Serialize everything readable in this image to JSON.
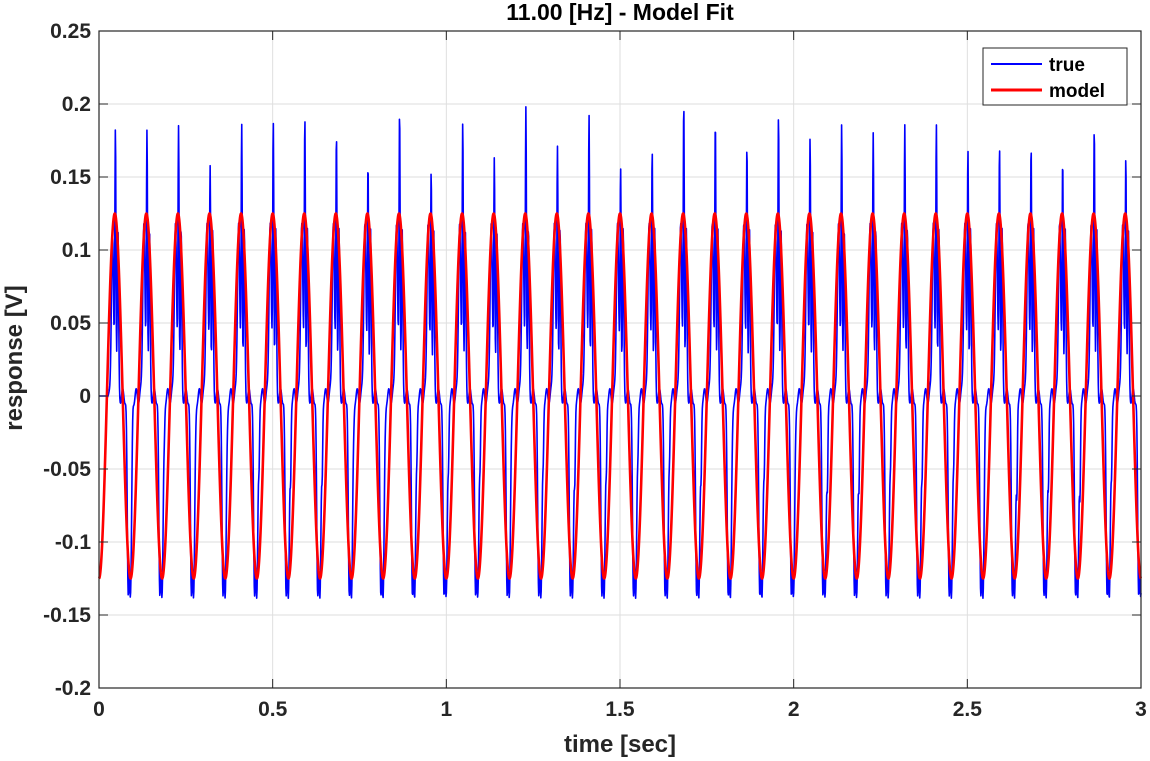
{
  "chart_data": {
    "type": "line",
    "title": "11.00 [Hz] - Model Fit",
    "xlabel": "time [sec]",
    "ylabel": "response [V]",
    "xlim": [
      0,
      3
    ],
    "ylim": [
      -0.2,
      0.25
    ],
    "xticks": [
      0,
      0.5,
      1,
      1.5,
      2,
      2.5,
      3
    ],
    "xtick_labels": [
      "0",
      "0.5",
      "1",
      "1.5",
      "2",
      "2.5",
      "3"
    ],
    "yticks": [
      -0.2,
      -0.15,
      -0.1,
      -0.05,
      0,
      0.05,
      0.1,
      0.15,
      0.2,
      0.25
    ],
    "ytick_labels": [
      "-0.2",
      "-0.15",
      "-0.1",
      "-0.05",
      "0",
      "0.05",
      "0.1",
      "0.15",
      "0.2",
      "0.25"
    ],
    "grid": true,
    "legend_position": "top-right",
    "frequency_hz": 11.0,
    "series": [
      {
        "name": "true",
        "color": "#0000ff",
        "description_values": {
          "period_sec": 0.0909,
          "peak_max_range": [
            0.15,
            0.204
          ],
          "secondary_peak": 0.12,
          "trough_min_range": [
            -0.187,
            -0.13
          ],
          "shoulder_value": 0.0,
          "x": [
            0,
            0.02,
            0.035,
            0.045,
            0.055,
            0.08,
            0.09,
            0.1,
            0.13,
            0.2,
            0.22,
            0.31,
            0.4,
            0.49,
            0.58,
            0.68,
            0.77,
            0.86,
            0.95,
            1.04,
            1.13,
            1.22,
            1.31,
            1.4,
            1.49,
            1.58,
            1.67,
            1.76,
            1.86,
            1.95,
            2.04,
            2.13,
            2.22,
            2.31,
            2.4,
            2.49,
            2.58,
            2.67,
            2.76,
            2.85,
            2.94
          ],
          "y": [
            0,
            0.0,
            0.175,
            0.19,
            0.12,
            -0.13,
            -0.147,
            -0.145,
            0.193,
            0.0,
            0.151,
            0.183,
            0.181,
            0.189,
            0.186,
            0.165,
            0.18,
            0.185,
            0.194,
            0.19,
            0.187,
            0.172,
            0.187,
            0.186,
            0.197,
            0.19,
            0.18,
            0.191,
            0.19,
            0.19,
            0.204,
            0.18,
            0.175,
            0.19,
            0.175,
            0.19,
            0.19,
            0.18,
            0.185,
            0.191,
            0.19
          ]
        }
      },
      {
        "name": "model",
        "color": "#ff0000",
        "amplitude": 0.125,
        "phase_note": "starts at -0.125 at t=0"
      }
    ]
  }
}
